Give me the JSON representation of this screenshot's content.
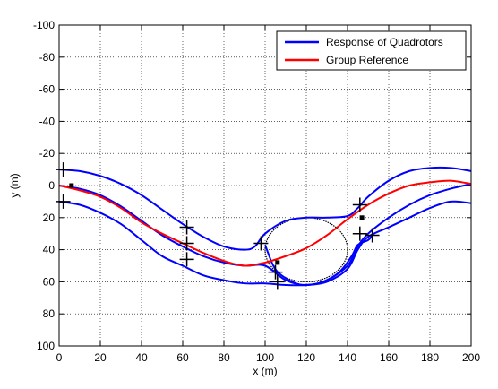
{
  "chart_data": {
    "type": "line",
    "xlabel": "x (m)",
    "ylabel": "y (m)",
    "xlim": [
      0,
      200
    ],
    "ylim": [
      100,
      -100
    ],
    "y_axis_reversed": true,
    "grid": true,
    "legend_position": "top-right",
    "xticks": [
      "0",
      "20",
      "40",
      "60",
      "80",
      "100",
      "120",
      "140",
      "160",
      "180",
      "200"
    ],
    "yticks": [
      "-100",
      "-80",
      "-60",
      "-40",
      "-20",
      "0",
      "20",
      "40",
      "60",
      "80",
      "100"
    ],
    "series": [
      {
        "name": "Response of Quadrotors",
        "color": "#0000ff",
        "subseries": [
          {
            "x": [
              0,
              10,
              20,
              30,
              40,
              50,
              60,
              70,
              80,
              90,
              95,
              100,
              110,
              120,
              130,
              140,
              145,
              150,
              160,
              170,
              180,
              190,
              200
            ],
            "y": [
              -10,
              -9,
              -6,
              -1,
              6,
              15,
              24,
              32,
              38,
              40,
              38,
              30,
              22,
              20,
              20,
              19,
              14,
              7,
              -3,
              -9,
              -11,
              -11,
              -9
            ]
          },
          {
            "x": [
              0,
              10,
              20,
              30,
              40,
              50,
              60,
              70,
              80,
              90,
              100,
              110,
              120,
              130,
              140,
              145,
              150,
              160,
              170,
              180,
              190,
              200
            ],
            "y": [
              0,
              2,
              6,
              13,
              22,
              31,
              38,
              44,
              48,
              50,
              50,
              59,
              62,
              59,
              50,
              38,
              30,
              20,
              12,
              6,
              2,
              -1
            ]
          },
          {
            "x": [
              0,
              10,
              20,
              30,
              40,
              50,
              60,
              70,
              80,
              90,
              100,
              110,
              120,
              130,
              140,
              145,
              150,
              160,
              170,
              180,
              190,
              200
            ],
            "y": [
              10,
              12,
              17,
              24,
              34,
              44,
              50,
              56,
              59,
              61,
              61,
              62,
              62,
              60,
              52,
              40,
              32,
              26,
              20,
              14,
              10,
              11
            ]
          },
          {
            "x": [
              100,
              104,
              108,
              115,
              120,
              128,
              136,
              142,
              145,
              150,
              152
            ],
            "y": [
              37,
              50,
              56,
              61,
              62,
              60,
              54,
              44,
              37,
              34,
              31
            ]
          }
        ]
      },
      {
        "name": "Group Reference",
        "color": "#ff0000",
        "x": [
          0,
          10,
          20,
          30,
          40,
          50,
          60,
          70,
          80,
          90,
          100,
          110,
          120,
          130,
          140,
          150,
          160,
          170,
          180,
          190,
          200
        ],
        "y": [
          0,
          3,
          7,
          14,
          23,
          30,
          36,
          42,
          47,
          50,
          48,
          44,
          39,
          31,
          21,
          12,
          5,
          0,
          -2,
          -3,
          -1
        ]
      }
    ],
    "circle": {
      "center": [
        120,
        40
      ],
      "radius": 20,
      "color": "#000000",
      "style": "dotted"
    },
    "markers": {
      "symbol": "+",
      "color": "#000000",
      "points": [
        {
          "x": 2,
          "y": -10
        },
        {
          "x": 2,
          "y": 10
        },
        {
          "x": 62,
          "y": 26
        },
        {
          "x": 62,
          "y": 36
        },
        {
          "x": 62,
          "y": 46
        },
        {
          "x": 98,
          "y": 36
        },
        {
          "x": 105,
          "y": 54
        },
        {
          "x": 106,
          "y": 60
        },
        {
          "x": 146,
          "y": 12
        },
        {
          "x": 146,
          "y": 30
        },
        {
          "x": 152,
          "y": 31
        }
      ]
    },
    "square_markers": [
      {
        "x": 6,
        "y": 0
      },
      {
        "x": 106,
        "y": 48
      },
      {
        "x": 147,
        "y": 20
      }
    ]
  }
}
